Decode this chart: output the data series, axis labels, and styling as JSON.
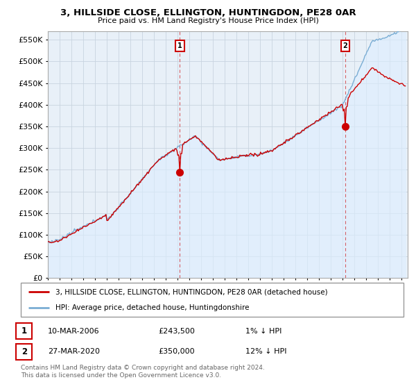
{
  "title": "3, HILLSIDE CLOSE, ELLINGTON, HUNTINGDON, PE28 0AR",
  "subtitle": "Price paid vs. HM Land Registry's House Price Index (HPI)",
  "ylabel_ticks": [
    0,
    50000,
    100000,
    150000,
    200000,
    250000,
    300000,
    350000,
    400000,
    450000,
    500000,
    550000
  ],
  "ylim": [
    0,
    570000
  ],
  "xlim_start": 1995.0,
  "xlim_end": 2025.5,
  "price_color": "#cc0000",
  "hpi_color": "#7aadd4",
  "hpi_fill_color": "#ddeeff",
  "transaction1": {
    "date_num": 2006.19,
    "price": 243500,
    "label": "1"
  },
  "transaction2": {
    "date_num": 2020.23,
    "price": 350000,
    "label": "2"
  },
  "legend_line1": "3, HILLSIDE CLOSE, ELLINGTON, HUNTINGDON, PE28 0AR (detached house)",
  "legend_line2": "HPI: Average price, detached house, Huntingdonshire",
  "footnote": "Contains HM Land Registry data © Crown copyright and database right 2024.\nThis data is licensed under the Open Government Licence v3.0.",
  "background_color": "#ffffff",
  "plot_bg_color": "#e8f0f8",
  "grid_color": "#c8d4e0"
}
